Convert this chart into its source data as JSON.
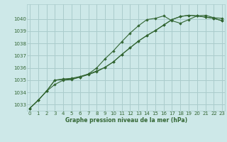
{
  "bg_color": "#cde8e8",
  "grid_color": "#aacccc",
  "line_color": "#336633",
  "marker_color": "#336633",
  "title": "Graphe pression niveau de la mer (hPa)",
  "xlim": [
    -0.3,
    23.3
  ],
  "ylim": [
    1032.5,
    1041.2
  ],
  "yticks": [
    1033,
    1034,
    1035,
    1036,
    1037,
    1038,
    1039,
    1040
  ],
  "xticks": [
    0,
    1,
    2,
    3,
    4,
    5,
    6,
    7,
    8,
    9,
    10,
    11,
    12,
    13,
    14,
    15,
    16,
    17,
    18,
    19,
    20,
    21,
    22,
    23
  ],
  "series1": [
    1032.7,
    1033.35,
    1034.1,
    1034.65,
    1035.0,
    1035.05,
    1035.25,
    1035.5,
    1036.0,
    1036.75,
    1037.4,
    1038.15,
    1038.85,
    1039.45,
    1039.95,
    1040.05,
    1040.25,
    1039.85,
    1039.65,
    1039.95,
    1040.25,
    1040.3,
    1040.1,
    1040.05
  ],
  "series2": [
    1032.7,
    1033.35,
    1034.1,
    1035.0,
    1035.05,
    1035.1,
    1035.25,
    1035.45,
    1035.7,
    1036.05,
    1036.5,
    1037.1,
    1037.65,
    1038.2,
    1038.65,
    1039.05,
    1039.5,
    1039.95,
    1040.2,
    1040.3,
    1040.25,
    1040.15,
    1040.05,
    1039.85
  ],
  "series3": [
    1032.7,
    1033.35,
    1034.1,
    1035.0,
    1035.1,
    1035.15,
    1035.3,
    1035.5,
    1035.75,
    1036.05,
    1036.5,
    1037.1,
    1037.65,
    1038.2,
    1038.65,
    1039.05,
    1039.5,
    1039.95,
    1040.2,
    1040.3,
    1040.25,
    1040.15,
    1040.05,
    1039.85
  ]
}
